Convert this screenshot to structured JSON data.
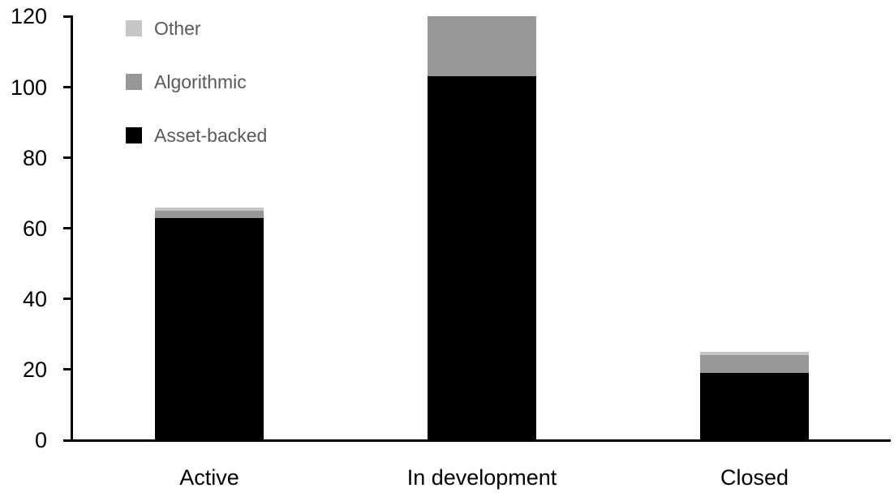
{
  "chart_data": {
    "type": "bar",
    "stacked": true,
    "title": "",
    "categories": [
      "Active",
      "In development",
      "Closed"
    ],
    "series": [
      {
        "name": "Asset-backed",
        "color": "#000000",
        "values": [
          63,
          103,
          19
        ]
      },
      {
        "name": "Algorithmic",
        "color": "#979797",
        "values": [
          2,
          17,
          5
        ]
      },
      {
        "name": "Other",
        "color": "#c6c6c6",
        "values": [
          1,
          0,
          1
        ]
      }
    ],
    "xlabel": "",
    "ylabel": "",
    "ylim": [
      0,
      120
    ],
    "yticks": [
      0,
      20,
      40,
      60,
      80,
      100,
      120
    ],
    "grid": false,
    "axis_color": "#000000",
    "background_color": "#ffffff",
    "legend": {
      "position": "top-left-inside",
      "order": [
        "Other",
        "Algorithmic",
        "Asset-backed"
      ],
      "text_color": "#595959"
    }
  }
}
